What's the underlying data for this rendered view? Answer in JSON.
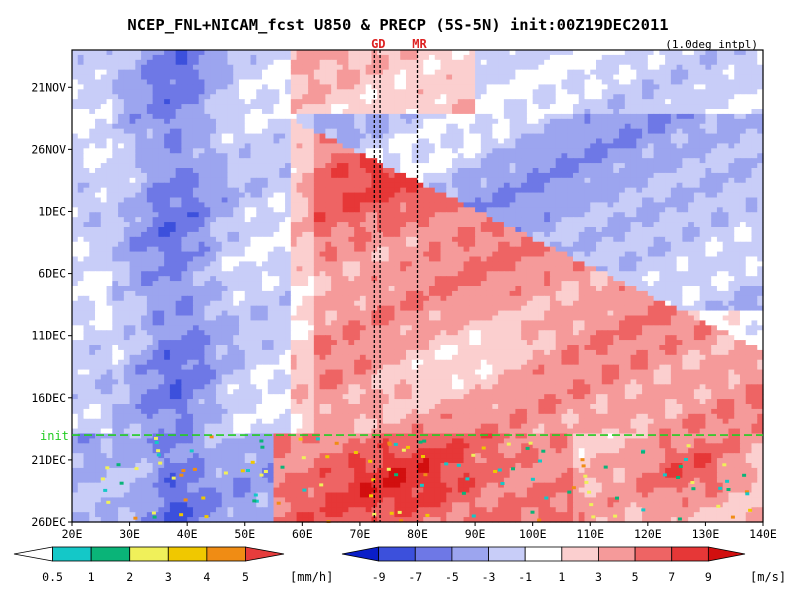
{
  "chart_data": {
    "type": "heatmap",
    "title": "NCEP_FNL+NICAM_fcst U850 & PRECP (5S-5N) init:00Z19DEC2011",
    "subtitle": "(1.0deg intpl)",
    "x_axis": {
      "ticks": [
        "20E",
        "30E",
        "40E",
        "50E",
        "60E",
        "70E",
        "80E",
        "90E",
        "100E",
        "110E",
        "120E",
        "130E",
        "140E"
      ],
      "range": [
        20,
        140
      ]
    },
    "y_axis": {
      "ticks": [
        "21NOV",
        "26NOV",
        "1DEC",
        "6DEC",
        "11DEC",
        "16DEC",
        "21DEC",
        "26DEC"
      ],
      "tick_days": [
        0,
        5,
        10,
        15,
        20,
        25,
        30,
        35
      ],
      "range_days": [
        -3,
        35
      ]
    },
    "markers": {
      "init_label": "init",
      "init_day": 28,
      "site_labels": [
        {
          "label": "GD",
          "lon": 72.5
        },
        {
          "label": "MR",
          "lon": 80.0
        }
      ],
      "site_lines_lon": [
        72.5,
        73.5,
        80.0
      ]
    },
    "precip_colorbar": {
      "labels": [
        "0.5",
        "1",
        "2",
        "3",
        "4",
        "5"
      ],
      "unit": "[mm/h]",
      "colors": [
        "#ffffff",
        "#14c8c8",
        "#0ab478",
        "#f0f05a",
        "#f0c800",
        "#f08c14",
        "#e63c3c"
      ]
    },
    "wind_colorbar": {
      "labels": [
        "-9",
        "-7",
        "-5",
        "-3",
        "-1",
        "1",
        "3",
        "5",
        "7",
        "9"
      ],
      "unit": "[m/s]",
      "colors": [
        "#0a1ec8",
        "#3c50dc",
        "#6e78e6",
        "#9ca5ef",
        "#c8cdf8",
        "#ffffff",
        "#fbcfcf",
        "#f59a9a",
        "#ee6464",
        "#e63737",
        "#d20f0f"
      ]
    },
    "levels": [
      -9,
      -7,
      -5,
      -3,
      -1,
      1,
      3,
      5,
      7,
      9
    ]
  }
}
